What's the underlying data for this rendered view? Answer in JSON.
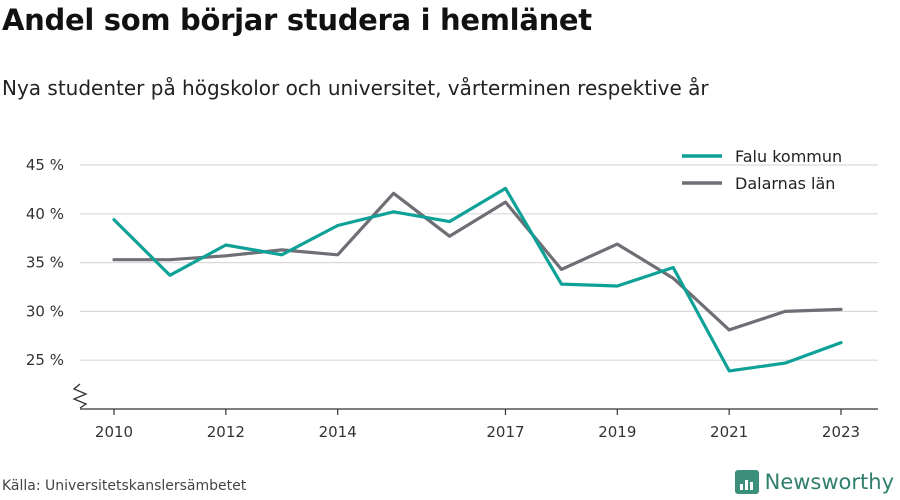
{
  "header": {
    "title": "Andel som börjar studera i hemlänet",
    "subtitle": "Nya studenter på högskolor och universitet, vårterminen respektive år"
  },
  "footer": {
    "source": "Källa: Universitetskanslersämbetet",
    "brand": "Newsworthy"
  },
  "colors": {
    "falu": "#0ea197",
    "dalarna": "#6e6e75",
    "brand": "#3b8f7b"
  },
  "chart_data": {
    "type": "line",
    "x": [
      2010,
      2011,
      2012,
      2013,
      2014,
      2015,
      2016,
      2017,
      2018,
      2019,
      2020,
      2021,
      2022,
      2023
    ],
    "x_tick_labels": [
      "2010",
      "2012",
      "2014",
      "2017",
      "2019",
      "2021",
      "2023"
    ],
    "y_ticks": [
      25,
      30,
      35,
      40,
      45
    ],
    "y_tick_labels": [
      "25 %",
      "30 %",
      "35 %",
      "40 %",
      "45 %"
    ],
    "ylim": [
      20,
      46
    ],
    "y_axis_break": true,
    "grid": true,
    "legend": "top-right",
    "series": [
      {
        "name": "Falu kommun",
        "values": [
          39.4,
          33.7,
          36.8,
          35.8,
          38.8,
          40.2,
          39.2,
          42.6,
          32.8,
          32.6,
          34.5,
          23.9,
          24.7,
          26.8
        ]
      },
      {
        "name": "Dalarnas län",
        "values": [
          35.3,
          35.3,
          35.7,
          36.3,
          35.8,
          42.1,
          37.7,
          41.2,
          34.3,
          36.9,
          33.4,
          28.1,
          30.0,
          30.2
        ]
      }
    ]
  }
}
